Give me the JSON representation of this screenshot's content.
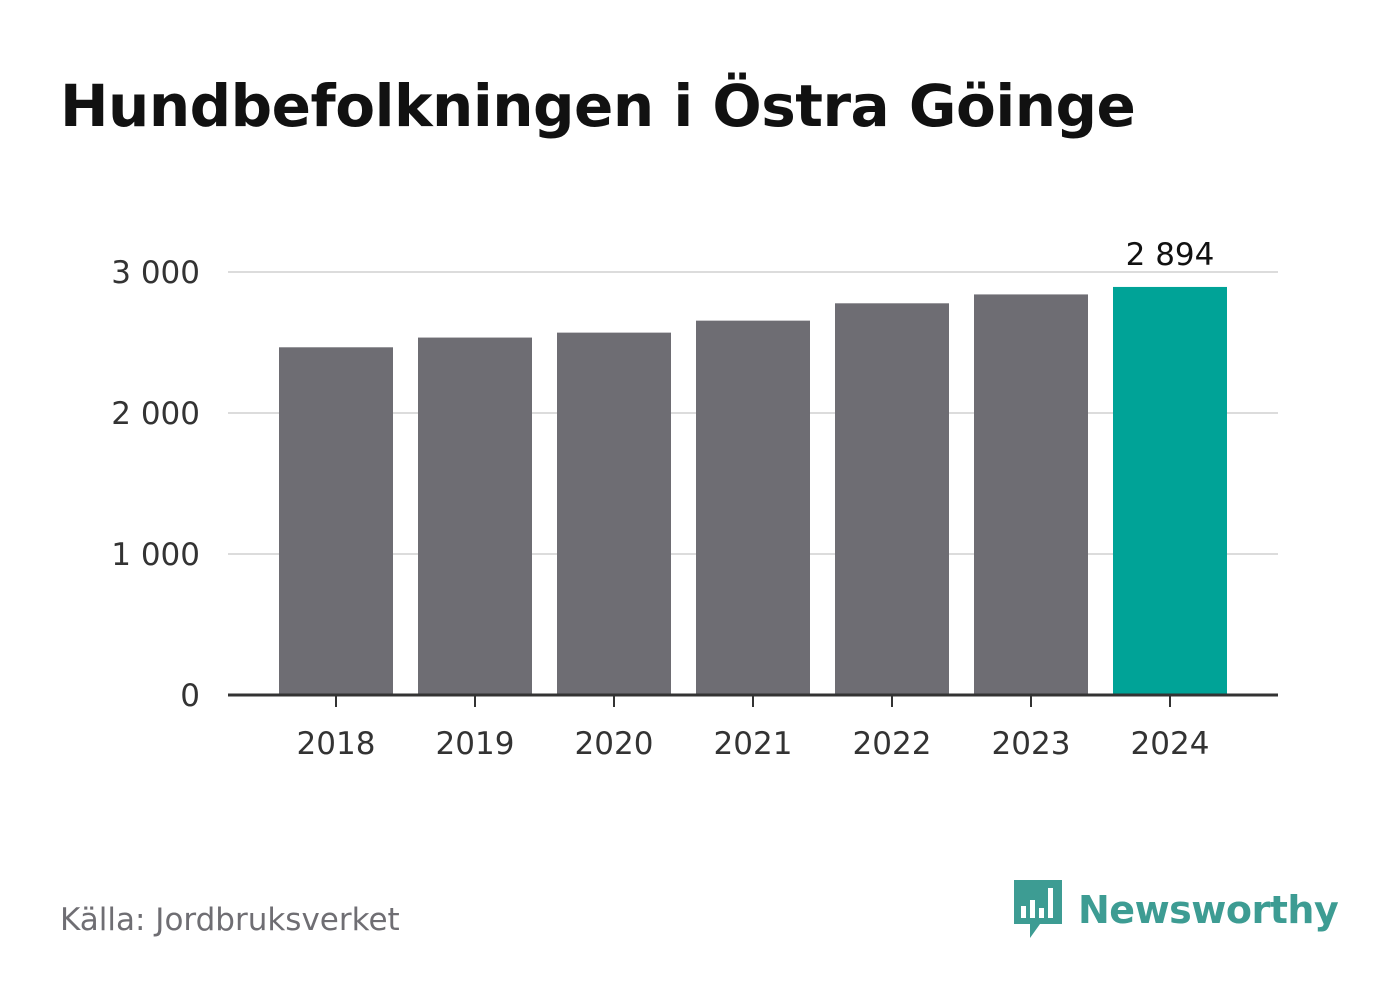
{
  "title": "Hundbefolkningen i Östra Göinge",
  "source": "Källa: Jordbruksverket",
  "brand": {
    "name": "Newsworthy",
    "icon": "bar-chart-speech-bubble-icon",
    "color": "#3d9c93"
  },
  "chart_data": {
    "type": "bar",
    "categories": [
      "2018",
      "2019",
      "2020",
      "2021",
      "2022",
      "2023",
      "2024"
    ],
    "values": [
      2466,
      2535,
      2570,
      2655,
      2778,
      2841,
      2894
    ],
    "ylim": [
      0,
      3000
    ],
    "yticks": [
      0,
      1000,
      2000,
      3000
    ],
    "ytick_labels": [
      "0",
      "1 000",
      "2 000",
      "3 000"
    ],
    "highlight_index": 6,
    "highlight_label": "2 894",
    "colors": {
      "bar": "#6e6d73",
      "highlight": "#00a397",
      "grid": "#dcdcdc",
      "axis": "#333333"
    },
    "grid": true,
    "xlabel": "",
    "ylabel": ""
  }
}
